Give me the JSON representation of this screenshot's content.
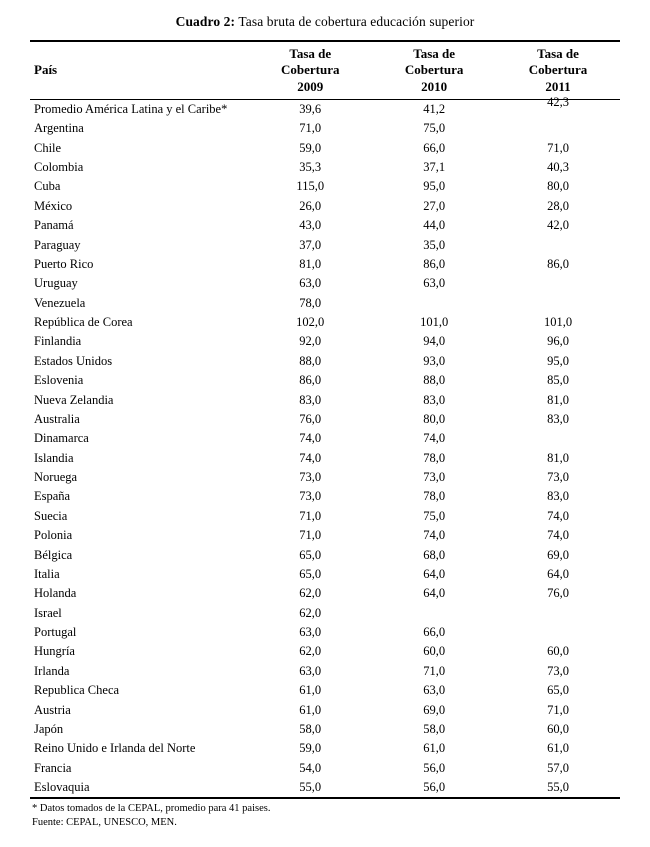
{
  "title": {
    "label": "Cuadro 2:",
    "text": " Tasa bruta de cobertura educación superior"
  },
  "table": {
    "headers": [
      "País",
      "Tasa de\nCobertura\n2009",
      "Tasa de\nCobertura\n2010",
      "Tasa de\nCobertura\n2011"
    ],
    "rows": [
      {
        "country": "Promedio América Latina y el Caribe*",
        "y2009": "39,6",
        "y2010": "41,2",
        "y2011": "42,3"
      },
      {
        "country": "Argentina",
        "y2009": "71,0",
        "y2010": "75,0",
        "y2011": ""
      },
      {
        "country": "Chile",
        "y2009": "59,0",
        "y2010": "66,0",
        "y2011": "71,0"
      },
      {
        "country": "Colombia",
        "y2009": "35,3",
        "y2010": "37,1",
        "y2011": "40,3"
      },
      {
        "country": "Cuba",
        "y2009": "115,0",
        "y2010": "95,0",
        "y2011": "80,0"
      },
      {
        "country": "México",
        "y2009": "26,0",
        "y2010": "27,0",
        "y2011": "28,0"
      },
      {
        "country": "Panamá",
        "y2009": "43,0",
        "y2010": "44,0",
        "y2011": "42,0"
      },
      {
        "country": "Paraguay",
        "y2009": "37,0",
        "y2010": "35,0",
        "y2011": ""
      },
      {
        "country": "Puerto Rico",
        "y2009": "81,0",
        "y2010": "86,0",
        "y2011": "86,0"
      },
      {
        "country": "Uruguay",
        "y2009": "63,0",
        "y2010": "63,0",
        "y2011": ""
      },
      {
        "country": "Venezuela",
        "y2009": "78,0",
        "y2010": "",
        "y2011": ""
      },
      {
        "country": "República de Corea",
        "y2009": "102,0",
        "y2010": "101,0",
        "y2011": "101,0"
      },
      {
        "country": "Finlandia",
        "y2009": "92,0",
        "y2010": "94,0",
        "y2011": "96,0"
      },
      {
        "country": "Estados Unidos",
        "y2009": "88,0",
        "y2010": "93,0",
        "y2011": "95,0"
      },
      {
        "country": "Eslovenia",
        "y2009": "86,0",
        "y2010": "88,0",
        "y2011": "85,0"
      },
      {
        "country": "Nueva Zelandia",
        "y2009": "83,0",
        "y2010": "83,0",
        "y2011": "81,0"
      },
      {
        "country": "Australia",
        "y2009": "76,0",
        "y2010": "80,0",
        "y2011": "83,0"
      },
      {
        "country": "Dinamarca",
        "y2009": "74,0",
        "y2010": "74,0",
        "y2011": ""
      },
      {
        "country": "Islandia",
        "y2009": "74,0",
        "y2010": "78,0",
        "y2011": "81,0"
      },
      {
        "country": "Noruega",
        "y2009": "73,0",
        "y2010": "73,0",
        "y2011": "73,0"
      },
      {
        "country": "España",
        "y2009": "73,0",
        "y2010": "78,0",
        "y2011": "83,0"
      },
      {
        "country": "Suecia",
        "y2009": "71,0",
        "y2010": "75,0",
        "y2011": "74,0"
      },
      {
        "country": "Polonia",
        "y2009": "71,0",
        "y2010": "74,0",
        "y2011": "74,0"
      },
      {
        "country": "Bélgica",
        "y2009": "65,0",
        "y2010": "68,0",
        "y2011": "69,0"
      },
      {
        "country": "Italia",
        "y2009": "65,0",
        "y2010": "64,0",
        "y2011": "64,0"
      },
      {
        "country": "Holanda",
        "y2009": "62,0",
        "y2010": "64,0",
        "y2011": "76,0"
      },
      {
        "country": "Israel",
        "y2009": "62,0",
        "y2010": "",
        "y2011": ""
      },
      {
        "country": "Portugal",
        "y2009": "63,0",
        "y2010": "66,0",
        "y2011": ""
      },
      {
        "country": "Hungría",
        "y2009": "62,0",
        "y2010": "60,0",
        "y2011": "60,0"
      },
      {
        "country": "Irlanda",
        "y2009": "63,0",
        "y2010": "71,0",
        "y2011": "73,0"
      },
      {
        "country": "Republica Checa",
        "y2009": "61,0",
        "y2010": "63,0",
        "y2011": "65,0"
      },
      {
        "country": "Austria",
        "y2009": "61,0",
        "y2010": "69,0",
        "y2011": "71,0"
      },
      {
        "country": "Japón",
        "y2009": "58,0",
        "y2010": "58,0",
        "y2011": "60,0"
      },
      {
        "country": "Reino Unido e Irlanda del Norte",
        "y2009": "59,0",
        "y2010": "61,0",
        "y2011": "61,0"
      },
      {
        "country": "Francia",
        "y2009": "54,0",
        "y2010": "56,0",
        "y2011": "57,0"
      },
      {
        "country": "Eslovaquia",
        "y2009": "55,0",
        "y2010": "56,0",
        "y2011": "55,0"
      }
    ]
  },
  "footnotes": {
    "note1": "* Datos tomados de la CEPAL, promedio para 41 paises.",
    "note2": "Fuente: CEPAL, UNESCO, MEN."
  }
}
